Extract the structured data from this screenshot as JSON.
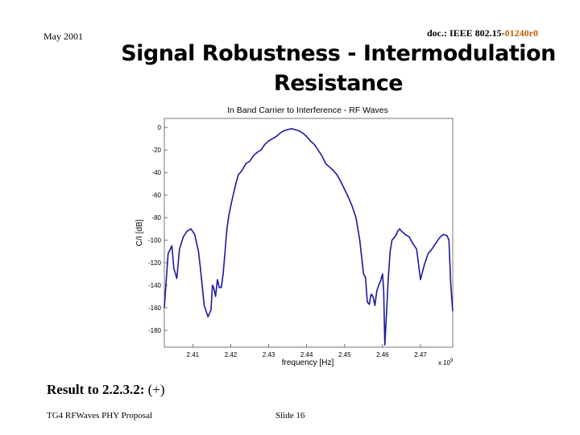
{
  "header": {
    "date": "May 2001",
    "doc_prefix": "doc.: IEEE 802.15-",
    "doc_revision": "01240r0"
  },
  "slide": {
    "title_line1": "Signal Robustness - Intermodulation",
    "title_line2": "Resistance",
    "result_label": "Result to 2.2.3.2:",
    "result_value": "(+)"
  },
  "footer": {
    "left": "TG4 RFWaves PHY Proposal",
    "slide_number": "Slide 16"
  },
  "colors": {
    "accent_revision": "#c06000",
    "trace": "#1a1aa0"
  },
  "chart_data": {
    "type": "line",
    "title": "In Band Carrier to Interference - RF Waves",
    "xlabel": "frequency [Hz]",
    "ylabel": "C/I [dB]",
    "x_multiplier": "x 10^9",
    "x_tick_labels": [
      "2.41",
      "2.42",
      "2.43",
      "2.44",
      "2.45",
      "2.46",
      "2.47"
    ],
    "x_ticks": [
      2.41,
      2.42,
      2.43,
      2.44,
      2.45,
      2.46,
      2.47
    ],
    "y_tick_labels": [
      "0",
      "-20",
      "-40",
      "-60",
      "-80",
      "-100",
      "-120",
      "-140",
      "-160",
      "-180"
    ],
    "y_ticks": [
      0,
      -20,
      -40,
      -60,
      -80,
      -100,
      -120,
      -140,
      -160,
      -180
    ],
    "xlim": [
      2.4025,
      2.4785
    ],
    "ylim": [
      -195,
      8
    ],
    "grid": false,
    "series": [
      {
        "x": [
          2.4025,
          2.4035,
          2.4045,
          2.405,
          2.4058,
          2.4065,
          2.4075,
          2.4085,
          2.4095,
          2.4105,
          2.4115,
          2.412,
          2.413,
          2.414,
          2.4148,
          2.4152,
          2.4155,
          2.416,
          2.4165,
          2.417,
          2.4175,
          2.418,
          2.4185,
          2.419,
          2.4195,
          2.42,
          2.4205,
          2.421,
          2.4215,
          2.422,
          2.423,
          2.424,
          2.425,
          2.426,
          2.427,
          2.428,
          2.429,
          2.43,
          2.431,
          2.432,
          2.433,
          2.434,
          2.435,
          2.436,
          2.437,
          2.438,
          2.439,
          2.44,
          2.441,
          2.442,
          2.443,
          2.444,
          2.445,
          2.446,
          2.447,
          2.448,
          2.449,
          2.45,
          2.451,
          2.452,
          2.453,
          2.454,
          2.455,
          2.4555,
          2.456,
          2.4565,
          2.457,
          2.4575,
          2.458,
          2.4585,
          2.459,
          2.4595,
          2.46,
          2.4603,
          2.4606,
          2.461,
          2.4615,
          2.462,
          2.4625,
          2.463,
          2.4635,
          2.464,
          2.4645,
          2.465,
          2.466,
          2.467,
          2.468,
          2.469,
          2.47,
          2.471,
          2.472,
          2.473,
          2.474,
          2.475,
          2.476,
          2.477,
          2.4775,
          2.478,
          2.4785
        ],
        "y": [
          -160,
          -112,
          -105,
          -125,
          -134,
          -108,
          -97,
          -92,
          -90,
          -95,
          -110,
          -125,
          -158,
          -168,
          -162,
          -140,
          -142,
          -150,
          -135,
          -142,
          -142,
          -130,
          -110,
          -90,
          -78,
          -70,
          -62,
          -55,
          -48,
          -42,
          -38,
          -32,
          -30,
          -25,
          -22,
          -20,
          -15,
          -12,
          -10,
          -8,
          -5,
          -3,
          -2,
          -1,
          -2,
          -3,
          -5,
          -8,
          -12,
          -15,
          -20,
          -25,
          -32,
          -35,
          -38,
          -42,
          -48,
          -55,
          -62,
          -70,
          -80,
          -100,
          -130,
          -133,
          -155,
          -157,
          -148,
          -150,
          -158,
          -145,
          -140,
          -136,
          -130,
          -145,
          -193,
          -168,
          -135,
          -110,
          -100,
          -98,
          -96,
          -92,
          -90,
          -92,
          -95,
          -97,
          -103,
          -108,
          -135,
          -122,
          -112,
          -108,
          -103,
          -98,
          -95,
          -96,
          -100,
          -140,
          -163
        ]
      }
    ]
  }
}
